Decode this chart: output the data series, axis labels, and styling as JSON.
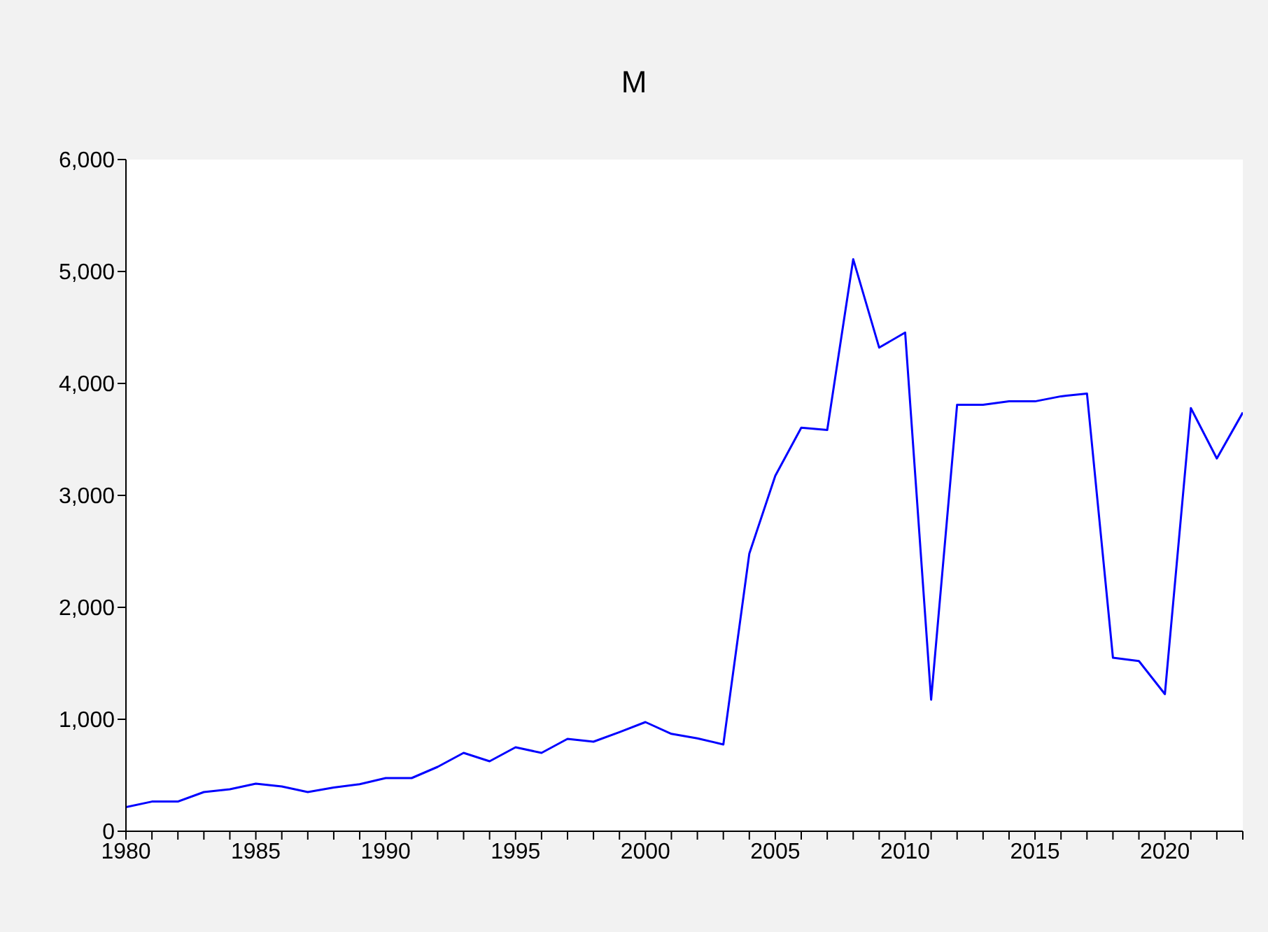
{
  "chart_data": {
    "type": "line",
    "title": "M",
    "x": [
      1980,
      1981,
      1982,
      1983,
      1984,
      1985,
      1986,
      1987,
      1988,
      1989,
      1990,
      1991,
      1992,
      1993,
      1994,
      1995,
      1996,
      1997,
      1998,
      1999,
      2000,
      2001,
      2002,
      2003,
      2004,
      2005,
      2006,
      2007,
      2008,
      2009,
      2010,
      2011,
      2012,
      2013,
      2014,
      2015,
      2016,
      2017,
      2018,
      2019,
      2020,
      2021,
      2022,
      2023
    ],
    "series": [
      {
        "color": "#0000ff",
        "values": [
          215,
          265,
          265,
          350,
          375,
          425,
          400,
          350,
          390,
          420,
          475,
          475,
          575,
          700,
          625,
          750,
          700,
          825,
          800,
          885,
          975,
          870,
          830,
          775,
          2480,
          3175,
          3605,
          3585,
          5110,
          4320,
          4455,
          1175,
          3810,
          3810,
          3840,
          3840,
          3885,
          3910,
          1550,
          1520,
          1225,
          3780,
          3330,
          3740
        ]
      }
    ],
    "xlim": [
      1980,
      2023
    ],
    "xticks": [
      1980,
      {
        "value": 1981,
        "label": null
      },
      {
        "value": 1982,
        "label": null
      },
      {
        "value": 1983,
        "label": null
      },
      {
        "value": 1984,
        "label": null
      },
      1985,
      {
        "value": 1986,
        "label": null
      },
      {
        "value": 1987,
        "label": null
      },
      {
        "value": 1988,
        "label": null
      },
      {
        "value": 1989,
        "label": null
      },
      1990,
      {
        "value": 1991,
        "label": null
      },
      {
        "value": 1992,
        "label": null
      },
      {
        "value": 1993,
        "label": null
      },
      {
        "value": 1994,
        "label": null
      },
      1995,
      {
        "value": 1996,
        "label": null
      },
      {
        "value": 1997,
        "label": null
      },
      {
        "value": 1998,
        "label": null
      },
      {
        "value": 1999,
        "label": null
      },
      2000,
      {
        "value": 2001,
        "label": null
      },
      {
        "value": 2002,
        "label": null
      },
      {
        "value": 2003,
        "label": null
      },
      {
        "value": 2004,
        "label": null
      },
      2005,
      {
        "value": 2006,
        "label": null
      },
      {
        "value": 2007,
        "label": null
      },
      {
        "value": 2008,
        "label": null
      },
      {
        "value": 2009,
        "label": null
      },
      2010,
      {
        "value": 2011,
        "label": null
      },
      {
        "value": 2012,
        "label": null
      },
      {
        "value": 2013,
        "label": null
      },
      {
        "value": 2014,
        "label": null
      },
      2015,
      {
        "value": 2016,
        "label": null
      },
      {
        "value": 2017,
        "label": null
      },
      {
        "value": 2018,
        "label": null
      },
      {
        "value": 2019,
        "label": null
      },
      2020,
      {
        "value": 2021,
        "label": null
      },
      {
        "value": 2022,
        "label": null
      },
      {
        "value": 2023,
        "label": null
      }
    ],
    "ylim": [
      0,
      6000
    ],
    "yticks": [
      {
        "value": 0,
        "label": "0"
      },
      {
        "value": 1000,
        "label": "1,000"
      },
      {
        "value": 2000,
        "label": "2,000"
      },
      {
        "value": 3000,
        "label": "3,000"
      },
      {
        "value": 4000,
        "label": "4,000"
      },
      {
        "value": 5000,
        "label": "5,000"
      },
      {
        "value": 6000,
        "label": "6,000"
      }
    ],
    "grid": false,
    "legend": false,
    "marker": "none",
    "line_style": "solid"
  }
}
